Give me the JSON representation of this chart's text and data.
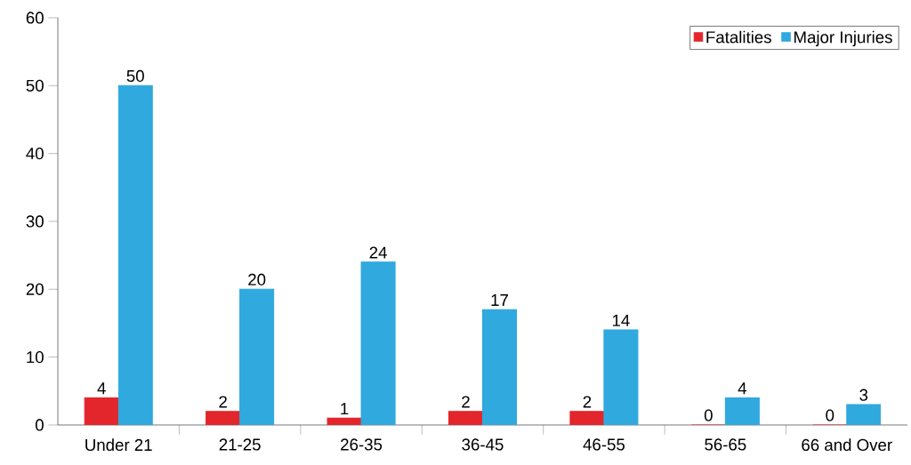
{
  "chart_data": {
    "type": "bar",
    "categories": [
      "Under 21",
      "21-25",
      "26-35",
      "36-45",
      "46-55",
      "56-65",
      "66 and Over"
    ],
    "series": [
      {
        "name": "Fatalities",
        "color": "#e3262b",
        "values": [
          4,
          2,
          1,
          2,
          2,
          0,
          0
        ]
      },
      {
        "name": "Major Injuries",
        "color": "#2fa9de",
        "values": [
          50,
          20,
          24,
          17,
          14,
          4,
          3
        ]
      }
    ],
    "ylim": [
      0,
      60
    ],
    "yticks": [
      0,
      10,
      20,
      30,
      40,
      50,
      60
    ],
    "data_labels": true,
    "legend": "top right",
    "grid": false
  }
}
